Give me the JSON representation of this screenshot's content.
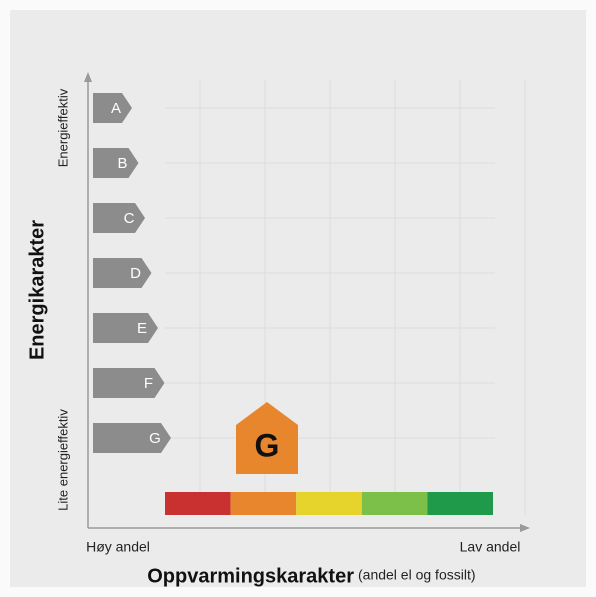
{
  "y_axis": {
    "title": "Energikarakter",
    "top_label": "Energieffektiv",
    "bottom_label": "Lite energieffektiv"
  },
  "x_axis": {
    "title": "Oppvarmingskarakter",
    "subtitle": "(andel el og fossilt)",
    "left_label": "Høy andel",
    "right_label": "Lav andel"
  },
  "grades": [
    "A",
    "B",
    "C",
    "D",
    "E",
    "F",
    "G"
  ],
  "grade_color": "#8c8c8c",
  "scale_colors": [
    "#c8312f",
    "#e8862e",
    "#e6d42c",
    "#7cc04a",
    "#1f9a4a"
  ],
  "rating": {
    "label": "G",
    "color": "#e8862e"
  }
}
